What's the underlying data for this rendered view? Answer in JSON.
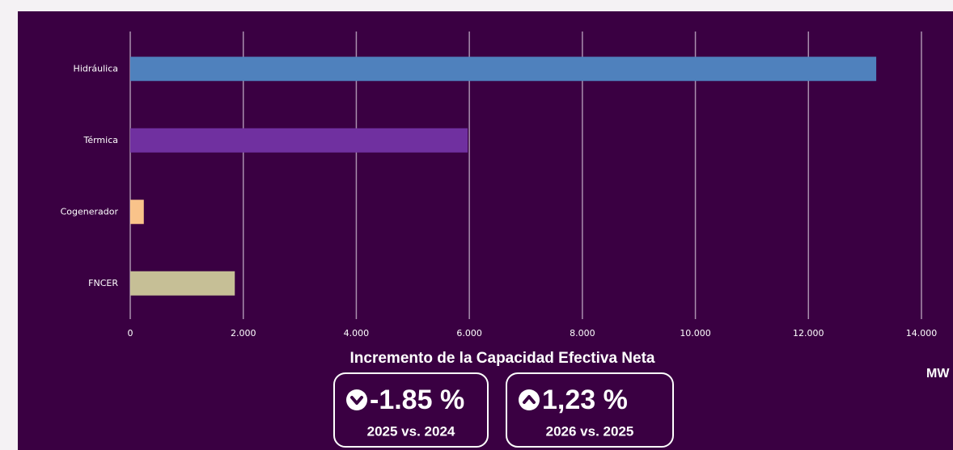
{
  "chart_data": {
    "type": "hbar",
    "title": "Incremento de la Capacidad Efectiva Neta",
    "xlabel": "MW",
    "categories": [
      "Hidráulica",
      "Térmica",
      "Cogenerador",
      "FNCER"
    ],
    "values": [
      13200,
      5970,
      240,
      1850
    ],
    "colors": [
      "#4f81bd",
      "#7030a0",
      "#f9c38a",
      "#c6bf96"
    ],
    "xlim": [
      0,
      14000
    ],
    "xticks": [
      0,
      {
        "value": 2000,
        "label": "2.000"
      },
      {
        "value": 4000,
        "label": "4.000"
      },
      {
        "value": 6000,
        "label": "6.000"
      },
      {
        "value": 8000,
        "label": "8.000"
      },
      {
        "value": 10000,
        "label": "10.000"
      },
      {
        "value": 12000,
        "label": "12.000"
      },
      {
        "value": 14000,
        "label": "14.000"
      }
    ],
    "grid": true
  },
  "kpis": [
    {
      "value": "-1.85 %",
      "label": "2025 vs. 2024",
      "direction": "down"
    },
    {
      "value": "1,23 %",
      "label": "2026 vs. 2025",
      "direction": "up"
    }
  ]
}
